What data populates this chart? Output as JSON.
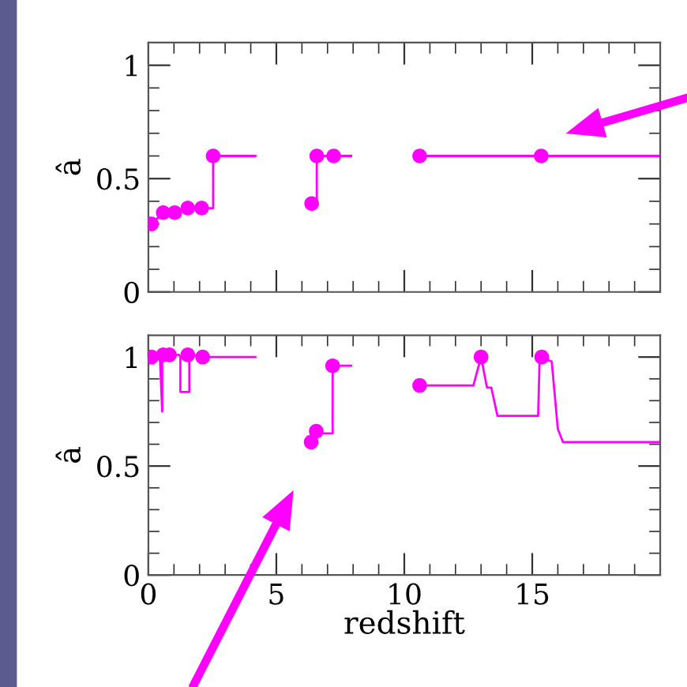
{
  "chart_data": [
    {
      "type": "line",
      "ylabel": "â",
      "xlim": [
        0,
        20
      ],
      "ylim": [
        0,
        1.1
      ],
      "xticks": [
        0,
        {
          "value": 1,
          "label": null
        },
        {
          "value": 2,
          "label": null
        },
        {
          "value": 3,
          "label": null
        },
        {
          "value": 4,
          "label": null
        },
        5,
        {
          "value": 6,
          "label": null
        },
        {
          "value": 7,
          "label": null
        },
        {
          "value": 8,
          "label": null
        },
        {
          "value": 9,
          "label": null
        },
        10,
        {
          "value": 11,
          "label": null
        },
        {
          "value": 12,
          "label": null
        },
        {
          "value": 13,
          "label": null
        },
        {
          "value": 14,
          "label": null
        },
        15,
        {
          "value": 16,
          "label": null
        },
        {
          "value": 17,
          "label": null
        },
        {
          "value": 18,
          "label": null
        },
        {
          "value": 19,
          "label": null
        }
      ],
      "yticks": [
        0,
        {
          "value": 0.1,
          "label": null
        },
        {
          "value": 0.2,
          "label": null
        },
        {
          "value": 0.3,
          "label": null
        },
        {
          "value": 0.4,
          "label": null
        },
        0.5,
        {
          "value": 0.6,
          "label": null
        },
        {
          "value": 0.7,
          "label": null
        },
        {
          "value": 0.8,
          "label": null
        },
        {
          "value": 0.9,
          "label": null
        },
        1
      ],
      "tick_labels": "y",
      "grid": false,
      "legend": false,
      "series": [
        {
          "color": "#ff00ff",
          "marker": "none",
          "x": [
            0.12,
            0.58,
            1.03,
            1.54,
            2.08,
            2.53,
            2.53,
            4.18,
            5.0,
            6.38,
            6.58,
            6.58,
            7.92,
            9.0,
            10.6,
            20
          ],
          "values": [
            0.3,
            0.35,
            0.35,
            0.37,
            0.37,
            0.37,
            0.6,
            0.6,
            null,
            0.39,
            0.39,
            0.6,
            0.6,
            null,
            0.6,
            0.6
          ]
        },
        {
          "type": "scatter",
          "color": "#ff00ff",
          "marker": "circle",
          "x": [
            0.12,
            0.58,
            1.03,
            1.54,
            2.08,
            2.53,
            6.38,
            6.58,
            7.24,
            10.6,
            15.35
          ],
          "values": [
            0.3,
            0.35,
            0.35,
            0.37,
            0.37,
            0.6,
            0.39,
            0.6,
            0.6,
            0.6,
            0.6
          ]
        }
      ]
    },
    {
      "type": "line",
      "ylabel": "â",
      "xlabel": "redshift",
      "xlim": [
        0,
        20
      ],
      "ylim": [
        0,
        1.1
      ],
      "xticks": [
        0,
        {
          "value": 1,
          "label": null
        },
        {
          "value": 2,
          "label": null
        },
        {
          "value": 3,
          "label": null
        },
        {
          "value": 4,
          "label": null
        },
        5,
        {
          "value": 6,
          "label": null
        },
        {
          "value": 7,
          "label": null
        },
        {
          "value": 8,
          "label": null
        },
        {
          "value": 9,
          "label": null
        },
        10,
        {
          "value": 11,
          "label": null
        },
        {
          "value": 12,
          "label": null
        },
        {
          "value": 13,
          "label": null
        },
        {
          "value": 14,
          "label": null
        },
        15,
        {
          "value": 16,
          "label": null
        },
        {
          "value": 17,
          "label": null
        },
        {
          "value": 18,
          "label": null
        },
        {
          "value": 19,
          "label": null
        }
      ],
      "yticks": [
        0,
        {
          "value": 0.1,
          "label": null
        },
        {
          "value": 0.2,
          "label": null
        },
        {
          "value": 0.3,
          "label": null
        },
        {
          "value": 0.4,
          "label": null
        },
        0.5,
        {
          "value": 0.6,
          "label": null
        },
        {
          "value": 0.7,
          "label": null
        },
        {
          "value": 0.8,
          "label": null
        },
        {
          "value": 0.9,
          "label": null
        },
        1
      ],
      "grid": false,
      "legend": false,
      "series": [
        {
          "color": "#ff00ff",
          "marker": "none",
          "x": [
            0.12,
            0.2,
            0.2,
            0.45,
            0.54,
            0.54,
            0.58,
            0.82,
            1.2,
            1.25,
            1.25,
            1.6,
            1.6,
            2.12,
            4.18,
            5.0,
            6.36,
            6.56,
            7.2,
            7.2,
            7.92,
            9.0,
            10.6,
            12.7,
            13.0,
            13.23,
            13.4,
            13.64,
            15.23,
            15.29,
            15.76,
            16.0,
            16.2,
            20
          ],
          "values": [
            1.0,
            0.97,
            1.0,
            1.0,
            0.75,
            1.0,
            1.01,
            1.01,
            1.01,
            1.0,
            0.84,
            0.84,
            1.01,
            1.0,
            1.0,
            null,
            0.61,
            0.65,
            0.65,
            0.96,
            0.96,
            null,
            0.87,
            0.87,
            1.0,
            0.86,
            0.86,
            0.73,
            0.73,
            1.0,
            0.98,
            0.67,
            0.61,
            0.61
          ]
        },
        {
          "type": "scatter",
          "color": "#ff00ff",
          "marker": "circle",
          "x": [
            0.12,
            0.58,
            0.82,
            1.54,
            2.12,
            6.36,
            6.56,
            7.2,
            10.6,
            13.0,
            15.37
          ],
          "values": [
            1.0,
            1.01,
            1.01,
            1.01,
            1.0,
            0.61,
            0.66,
            0.96,
            0.87,
            1.0,
            1.0
          ]
        }
      ]
    }
  ]
}
